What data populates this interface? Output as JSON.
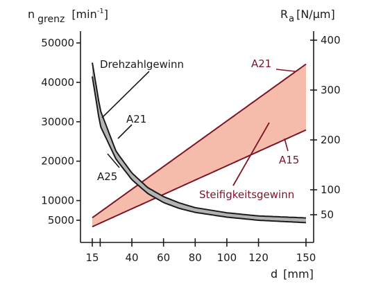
{
  "chart_data": {
    "type": "area",
    "y_left": {
      "label_main": "n",
      "label_sub": "grenz",
      "unit": "[min",
      "unit_sup": "-1",
      "unit_close": "]",
      "range": [
        0,
        55000
      ],
      "ticks": [
        5000,
        10000,
        20000,
        30000,
        40000,
        50000
      ],
      "tick_labels": [
        "5000",
        "10000",
        "20000",
        "30000",
        "40000",
        "50000"
      ]
    },
    "y_right": {
      "label_main": "R",
      "label_sub": "a",
      "unit": "[N/µm]",
      "range": [
        0,
        440
      ],
      "ticks": [
        50,
        100,
        200,
        300,
        400
      ],
      "tick_labels": [
        "50",
        "100",
        "200",
        "300",
        "400"
      ]
    },
    "x": {
      "label": "d",
      "unit": "[mm]",
      "range": [
        15,
        150
      ],
      "ticks": [
        15,
        20,
        40,
        60,
        80,
        100,
        120,
        150
      ],
      "labeled_ticks": [
        15,
        40,
        60,
        80,
        100,
        120,
        150
      ],
      "tick_labels": [
        "15",
        "40",
        "60",
        "80",
        "100",
        "120",
        "150"
      ]
    },
    "series": [
      {
        "name": "Drehzahlgewinn",
        "axis": "left",
        "style": "band",
        "fill": "#b3b3b3",
        "stroke": "#1a1a1a",
        "upper": {
          "name": "A21",
          "x": [
            15,
            20,
            30,
            40,
            50,
            60,
            70,
            80,
            100,
            120,
            150
          ],
          "y": [
            45000,
            33000,
            22500,
            17000,
            13300,
            11000,
            9400,
            8200,
            6900,
            6100,
            5600
          ]
        },
        "lower": {
          "name": "A25",
          "x": [
            15,
            20,
            30,
            40,
            50,
            60,
            70,
            80,
            100,
            120,
            150
          ],
          "y": [
            41500,
            29000,
            20500,
            15300,
            11800,
            9500,
            8000,
            7000,
            5800,
            5000,
            4400
          ]
        }
      },
      {
        "name": "Steifigkeitsgewinn",
        "axis": "right",
        "style": "band",
        "fill": "#f4b09c",
        "stroke": "#7a1426",
        "upper": {
          "name": "A21",
          "x": [
            15,
            150
          ],
          "y": [
            44,
            352
          ]
        },
        "lower": {
          "name": "A15",
          "x": [
            15,
            150
          ],
          "y": [
            26,
            220
          ]
        }
      }
    ],
    "annotations": [
      {
        "text": "Drehzahlgewinn",
        "color": "#1a1a1a"
      },
      {
        "text": "A21",
        "color": "#1a1a1a"
      },
      {
        "text": "A25",
        "color": "#1a1a1a"
      },
      {
        "text": "A21",
        "color": "#7a1426"
      },
      {
        "text": "A15",
        "color": "#7a1426"
      },
      {
        "text": "Steifigkeitsgewinn",
        "color": "#7a1426"
      }
    ],
    "grid": false,
    "legend": "none"
  }
}
